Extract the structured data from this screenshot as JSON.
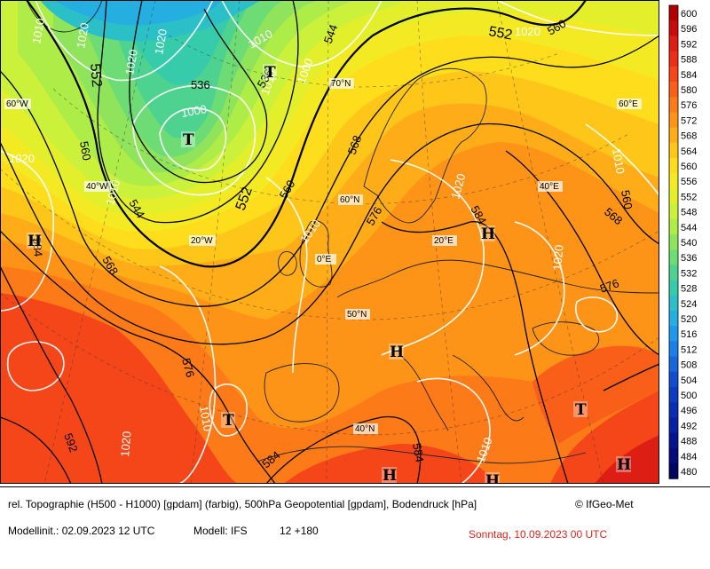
{
  "map": {
    "latitude_labels": [
      "70°N",
      "60°N",
      "50°N",
      "40°N"
    ],
    "longitude_labels": [
      "60°W",
      "40°W",
      "20°W",
      "0°E",
      "20°E",
      "40°E",
      "60°E"
    ],
    "isobar_labels_hpa": [
      "1010",
      "1020",
      "1020",
      "1020",
      "1000",
      "1010",
      "1000",
      "1020",
      "1010",
      "1010",
      "1020",
      "1020",
      "1010",
      "1020",
      "1010",
      "1020",
      "1010",
      "1010"
    ],
    "isohypse_labels_gpdam": [
      "552",
      "552",
      "552",
      "536",
      "536",
      "544",
      "544",
      "560",
      "560",
      "560",
      "568",
      "568",
      "568",
      "576",
      "576",
      "576",
      "584",
      "584",
      "584",
      "584",
      "592",
      "560"
    ],
    "pressure_centers": [
      {
        "type": "T",
        "label": "T"
      },
      {
        "type": "T",
        "label": "T"
      },
      {
        "type": "T",
        "label": "T"
      },
      {
        "type": "T",
        "label": "T"
      },
      {
        "type": "H",
        "label": "H"
      },
      {
        "type": "H",
        "label": "H"
      },
      {
        "type": "H",
        "label": "H"
      },
      {
        "type": "H",
        "label": "H"
      },
      {
        "type": "H",
        "label": "H"
      },
      {
        "type": "H",
        "label": "H"
      }
    ]
  },
  "legend": {
    "levels": [
      "600",
      "596",
      "592",
      "588",
      "584",
      "580",
      "576",
      "572",
      "568",
      "564",
      "560",
      "556",
      "552",
      "548",
      "544",
      "540",
      "536",
      "532",
      "528",
      "524",
      "520",
      "516",
      "512",
      "508",
      "504",
      "500",
      "496",
      "492",
      "488",
      "484",
      "480"
    ],
    "colors": [
      "#b00000",
      "#c80a0a",
      "#dc1e14",
      "#ec2e16",
      "#f5461a",
      "#fa5f19",
      "#fc7a17",
      "#fd9317",
      "#fead18",
      "#fec619",
      "#fede1c",
      "#f4ea24",
      "#e4ef2c",
      "#cbf13a",
      "#aeec48",
      "#8fe45c",
      "#6edc74",
      "#4dd38f",
      "#35cbab",
      "#2bbfc8",
      "#25aee0",
      "#1f98ec",
      "#1b7fe8",
      "#1666dc",
      "#114ecf",
      "#0c3cc2",
      "#0a2db5",
      "#0820a3",
      "#061490",
      "#040b7a",
      "#020560"
    ]
  },
  "footer": {
    "description": "rel. Topographie (H500 - H1000) [gpdam] (farbig), 500hPa Geopotential [gpdam], Bodendruck [hPa]",
    "copyright": "© IfGeo-Met",
    "model_init": "Modellinit.: 02.09.2023 12 UTC",
    "model": "Modell: IFS",
    "run": "12 +180",
    "valid_time": "Sonntag, 10.09.2023 00 UTC"
  }
}
